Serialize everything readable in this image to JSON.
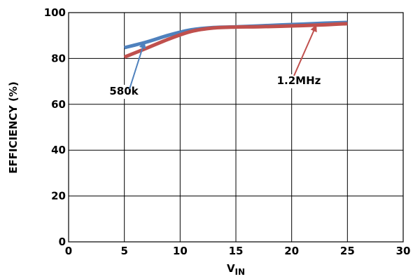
{
  "chart_data": {
    "type": "line",
    "xlabel": "V",
    "xlabel_sub": "IN",
    "ylabel": "EFFICIENCY (%)",
    "xlim": [
      0,
      30
    ],
    "ylim": [
      0,
      100
    ],
    "xticks": [
      0,
      5,
      10,
      15,
      20,
      25,
      30
    ],
    "yticks": [
      0,
      20,
      40,
      60,
      80,
      100
    ],
    "grid": true,
    "series": [
      {
        "name": "580k",
        "color": "#4f81bd",
        "x": [
          5,
          7,
          9,
          11,
          13,
          15,
          17,
          20,
          23,
          25
        ],
        "y": [
          84.7,
          87.2,
          90.2,
          92.5,
          93.5,
          93.8,
          94.2,
          94.8,
          95.4,
          95.7
        ]
      },
      {
        "name": "1.2MHz",
        "color": "#c0504d",
        "x": [
          5,
          7,
          9,
          11,
          13,
          15,
          17,
          20,
          23,
          25
        ],
        "y": [
          80.6,
          84.5,
          88.5,
          91.8,
          93.3,
          93.7,
          93.8,
          94.2,
          94.7,
          95.2
        ]
      }
    ],
    "annotations": [
      {
        "label": "580k",
        "series": 0,
        "arrow_to": [
          6.8,
          87.2
        ]
      },
      {
        "label": "1.2MHz",
        "series": 1,
        "arrow_to": [
          22.2,
          94.5
        ]
      }
    ]
  }
}
